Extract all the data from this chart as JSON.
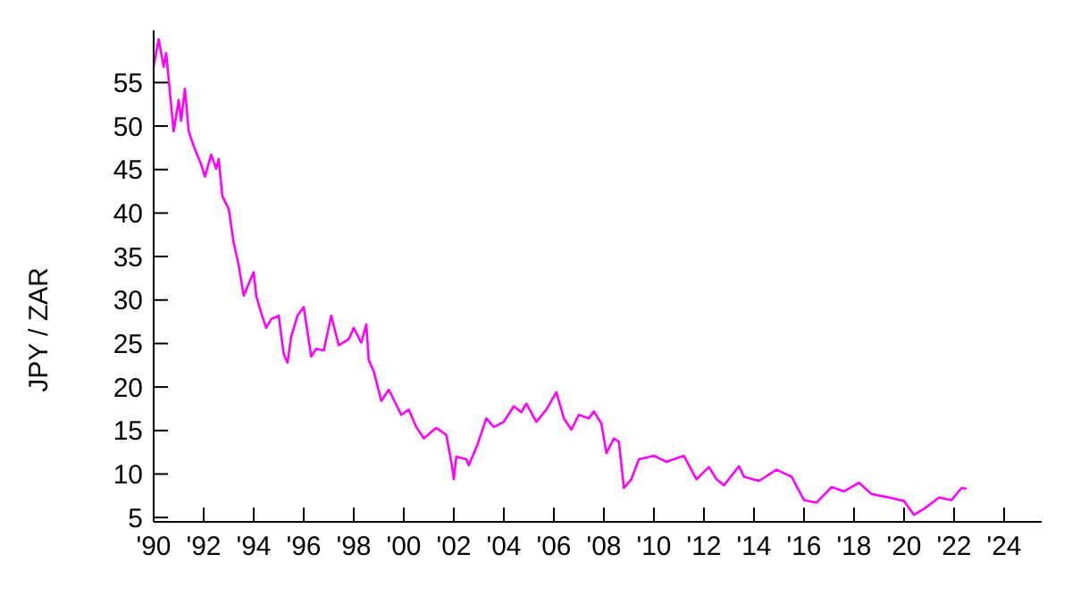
{
  "chart_data": {
    "type": "line",
    "ylabel": "JPY / ZAR",
    "x": [
      1990.0,
      1990.2,
      1990.4,
      1990.5,
      1990.8,
      1991.0,
      1991.1,
      1991.25,
      1991.4,
      1991.6,
      1991.9,
      1992.05,
      1992.3,
      1992.5,
      1992.6,
      1992.75,
      1993.0,
      1993.2,
      1993.4,
      1993.6,
      1993.85,
      1994.0,
      1994.1,
      1994.3,
      1994.5,
      1994.7,
      1995.0,
      1995.2,
      1995.35,
      1995.5,
      1995.75,
      1996.0,
      1996.3,
      1996.5,
      1996.8,
      1997.1,
      1997.4,
      1997.8,
      1998.0,
      1998.3,
      1998.5,
      1998.6,
      1998.8,
      1999.1,
      1999.4,
      1999.9,
      2000.2,
      2000.5,
      2000.8,
      2001.3,
      2001.7,
      2001.9,
      2002.0,
      2002.1,
      2002.5,
      2002.6,
      2002.95,
      2003.3,
      2003.6,
      2004.0,
      2004.4,
      2004.7,
      2004.9,
      2005.3,
      2005.7,
      2006.1,
      2006.4,
      2006.7,
      2007.0,
      2007.4,
      2007.6,
      2007.9,
      2008.1,
      2008.4,
      2008.6,
      2008.8,
      2009.1,
      2009.4,
      2010.0,
      2010.5,
      2011.2,
      2011.7,
      2012.2,
      2012.5,
      2012.8,
      2013.4,
      2013.6,
      2014.2,
      2014.9,
      2015.5,
      2016.0,
      2016.5,
      2017.1,
      2017.6,
      2018.2,
      2018.7,
      2019.4,
      2020.0,
      2020.4,
      2020.8,
      2021.4,
      2021.9,
      2022.3,
      2022.5
    ],
    "series": [
      {
        "color": "#ff00ff",
        "values": [
          56.8,
          60.0,
          56.8,
          58.4,
          49.4,
          53.0,
          50.6,
          54.3,
          49.4,
          47.7,
          45.6,
          44.2,
          46.7,
          45.1,
          46.2,
          41.9,
          40.5,
          36.6,
          34.0,
          30.5,
          32.2,
          33.2,
          30.5,
          28.5,
          26.8,
          27.8,
          28.2,
          23.8,
          22.8,
          25.8,
          28.2,
          29.2,
          23.5,
          24.4,
          24.2,
          28.2,
          24.8,
          25.5,
          26.8,
          25.1,
          27.2,
          23.1,
          21.8,
          18.4,
          19.7,
          16.8,
          17.4,
          15.4,
          14.1,
          15.3,
          14.5,
          11.4,
          9.4,
          12.0,
          11.7,
          11.0,
          13.4,
          16.4,
          15.4,
          16.0,
          17.8,
          17.1,
          18.1,
          16.0,
          17.4,
          19.4,
          16.4,
          15.1,
          16.8,
          16.4,
          17.2,
          15.8,
          12.4,
          14.1,
          13.7,
          8.4,
          9.4,
          11.7,
          12.1,
          11.4,
          12.1,
          9.4,
          10.8,
          9.4,
          8.7,
          10.9,
          9.7,
          9.2,
          10.5,
          9.7,
          7.0,
          6.7,
          8.5,
          8.0,
          9.0,
          7.7,
          7.3,
          6.9,
          5.3,
          6.0,
          7.3,
          7.0,
          8.4,
          8.3
        ]
      }
    ],
    "xlim": [
      1990,
      2025.5
    ],
    "xticks": [
      {
        "value": 1990,
        "label": "'90"
      },
      {
        "value": 1992,
        "label": "'92"
      },
      {
        "value": 1994,
        "label": "'94"
      },
      {
        "value": 1996,
        "label": "'96"
      },
      {
        "value": 1998,
        "label": "'98"
      },
      {
        "value": 2000,
        "label": "'00"
      },
      {
        "value": 2002,
        "label": "'02"
      },
      {
        "value": 2004,
        "label": "'04"
      },
      {
        "value": 2006,
        "label": "'06"
      },
      {
        "value": 2008,
        "label": "'08"
      },
      {
        "value": 2010,
        "label": "'10"
      },
      {
        "value": 2012,
        "label": "'12"
      },
      {
        "value": 2014,
        "label": "'14"
      },
      {
        "value": 2016,
        "label": "'16"
      },
      {
        "value": 2018,
        "label": "'18"
      },
      {
        "value": 2020,
        "label": "'20"
      },
      {
        "value": 2022,
        "label": "'22"
      },
      {
        "value": 2024,
        "label": "'24"
      }
    ],
    "ylim": [
      4.5,
      61
    ],
    "yticks": [
      5,
      10,
      15,
      20,
      25,
      30,
      35,
      40,
      45,
      50,
      55
    ],
    "grid": false,
    "legend": false,
    "marker": "none",
    "line_style": "solid"
  }
}
